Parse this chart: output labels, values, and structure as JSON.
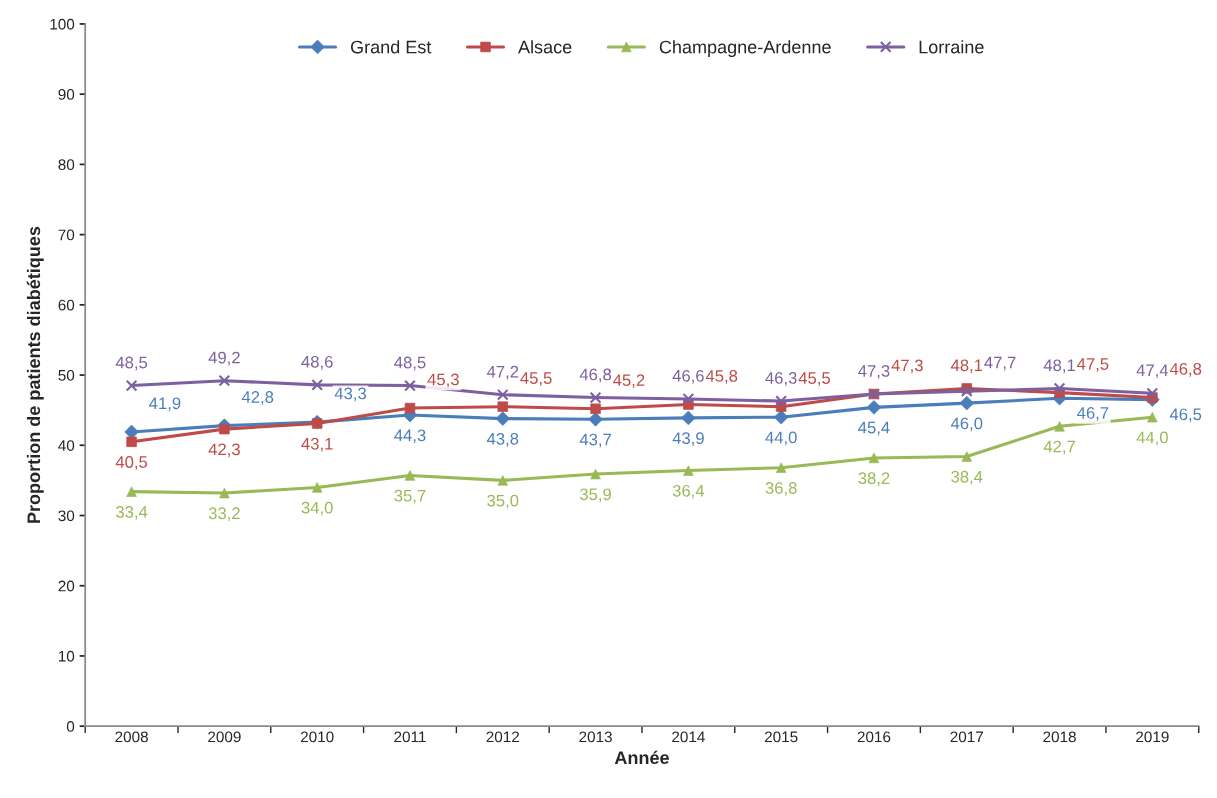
{
  "chart_data": {
    "type": "line",
    "xlabel": "Année",
    "ylabel": "Proportion de patients diabétiques",
    "categories": [
      "2008",
      "2009",
      "2010",
      "2011",
      "2012",
      "2013",
      "2014",
      "2015",
      "2016",
      "2017",
      "2018",
      "2019"
    ],
    "series": [
      {
        "name": "Grand Est",
        "color": "#4a7ebb",
        "marker": "diamond",
        "values": [
          41.9,
          42.8,
          43.3,
          44.3,
          43.8,
          43.7,
          43.9,
          44.0,
          45.4,
          46.0,
          46.7,
          46.5
        ],
        "value_labels": [
          "41,9",
          "42,8",
          "43,3",
          "44,3",
          "43,8",
          "43,7",
          "43,9",
          "44,0",
          "45,4",
          "46,0",
          "46,7",
          "46,5"
        ]
      },
      {
        "name": "Alsace",
        "color": "#be4b48",
        "marker": "square",
        "values": [
          40.5,
          42.3,
          43.1,
          45.3,
          45.5,
          45.2,
          45.8,
          45.5,
          47.3,
          48.1,
          47.5,
          46.8
        ],
        "value_labels": [
          "40,5",
          "42,3",
          "43,1",
          "45,3",
          "45,5",
          "45,2",
          "45,8",
          "45,5",
          "47,3",
          "48,1",
          "47,5",
          "46,8"
        ]
      },
      {
        "name": "Champagne-Ardenne",
        "color": "#98b954",
        "marker": "triangle",
        "values": [
          33.4,
          33.2,
          34.0,
          35.7,
          35.0,
          35.9,
          36.4,
          36.8,
          38.2,
          38.4,
          42.7,
          44.0
        ],
        "value_labels": [
          "33,4",
          "33,2",
          "34,0",
          "35,7",
          "35,0",
          "35,9",
          "36,4",
          "36,8",
          "38,2",
          "38,4",
          "42,7",
          "44,0"
        ]
      },
      {
        "name": "Lorraine",
        "color": "#7d60a0",
        "marker": "cross",
        "values": [
          48.5,
          49.2,
          48.6,
          48.5,
          47.2,
          46.8,
          46.6,
          46.3,
          47.3,
          47.7,
          48.1,
          47.4
        ],
        "value_labels": [
          "48,5",
          "49,2",
          "48,6",
          "48,5",
          "47,2",
          "46,8",
          "46,6",
          "46,3",
          "47,3",
          "47,7",
          "48,1",
          "47,4"
        ]
      }
    ],
    "ylim": [
      0,
      100
    ],
    "yticks": [
      0,
      10,
      20,
      30,
      40,
      50,
      60,
      70,
      80,
      90,
      100
    ],
    "legend": "top",
    "grid": false
  }
}
